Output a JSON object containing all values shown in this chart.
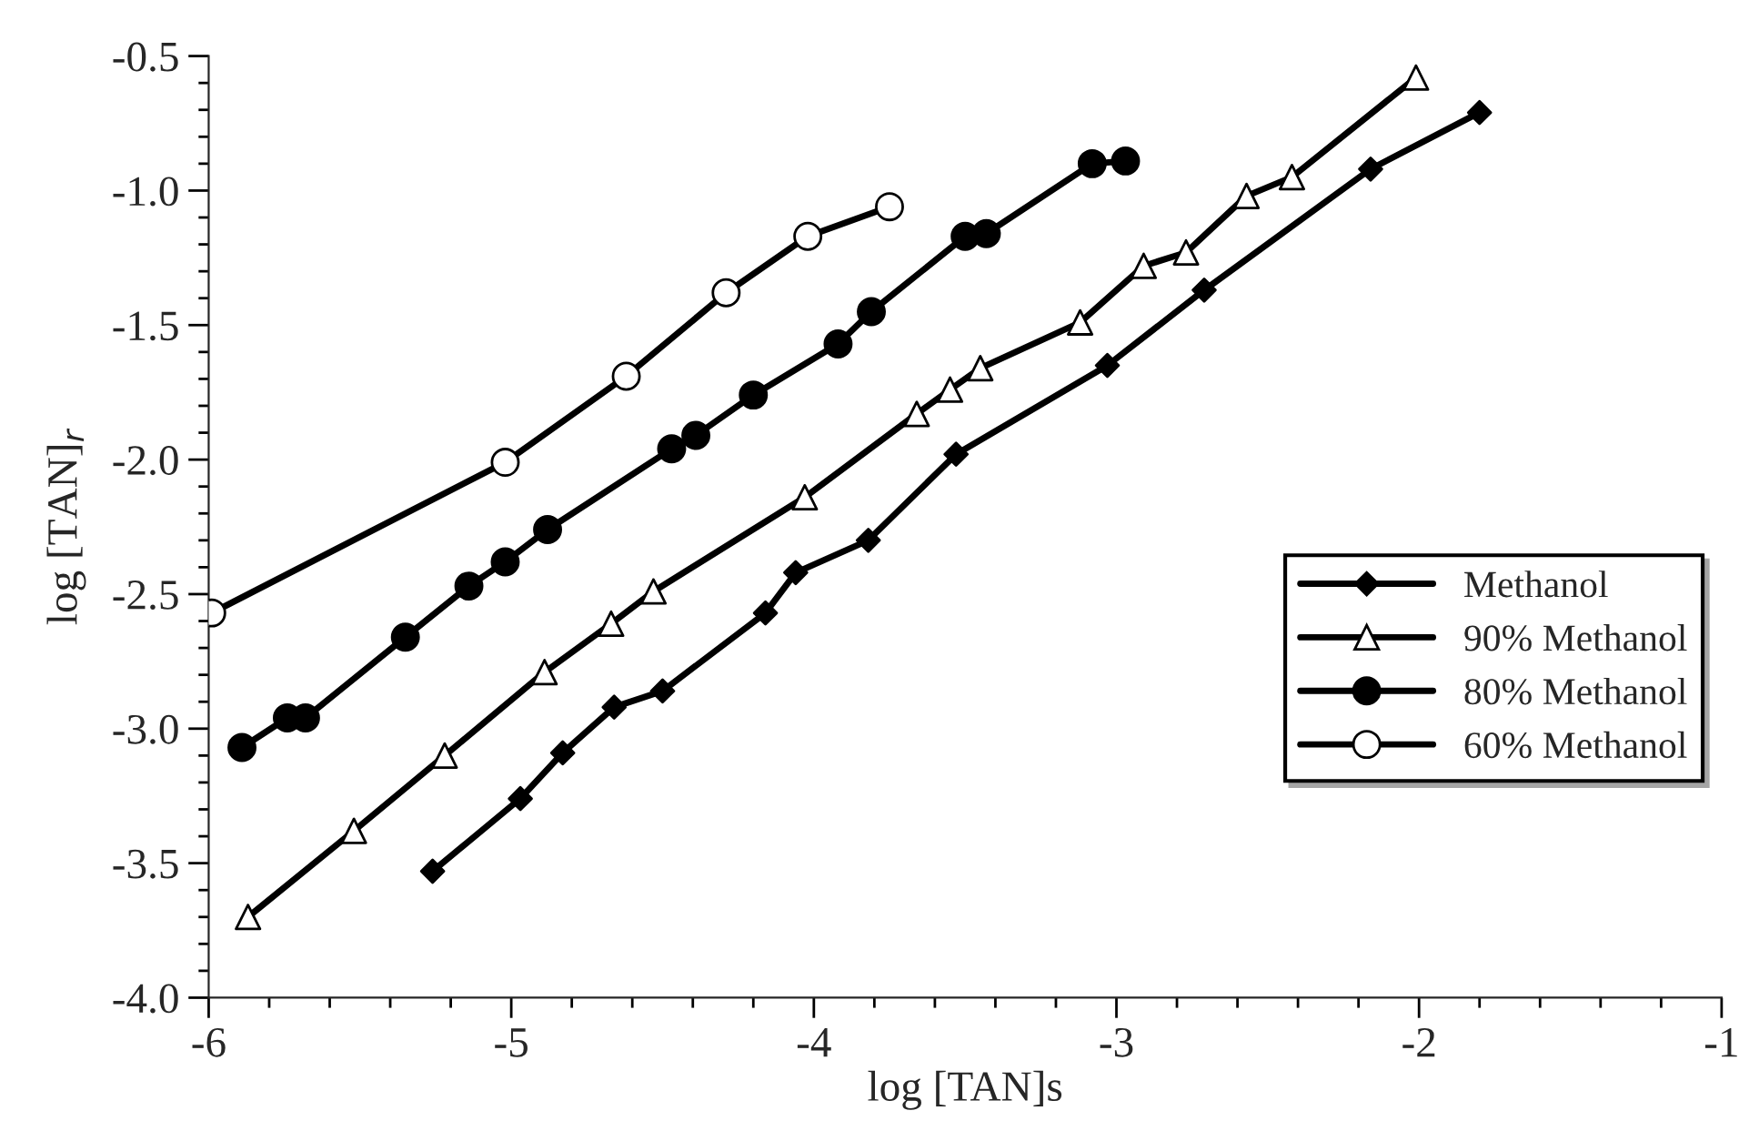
{
  "chart_data": {
    "type": "line",
    "xlabel": "log [TAN]s",
    "ylabel": "log [TAN]$_{r}$",
    "xlim": [
      -6,
      -1
    ],
    "xticks": [
      -6,
      -5,
      -4,
      -3,
      -2,
      -1
    ],
    "ylim": [
      -4.0,
      -0.5
    ],
    "yticks": [
      {
        "value": -4.0,
        "label": "-4.0"
      },
      {
        "value": -3.5,
        "label": "-3.5"
      },
      {
        "value": -3.0,
        "label": "-3.0"
      },
      {
        "value": -2.5,
        "label": "-2.5"
      },
      {
        "value": -2.0,
        "label": "-2.0"
      },
      {
        "value": -1.5,
        "label": "-1.5"
      },
      {
        "value": -1.0,
        "label": "-1.0"
      },
      {
        "value": -0.5,
        "label": "-0.5"
      }
    ],
    "grid": false,
    "legend": "right",
    "line_style": "solid",
    "series": [
      {
        "name": "Methanol",
        "color": "#000000",
        "marker": "diamond",
        "x": [
          -5.26,
          -4.97,
          -4.83,
          -4.66,
          -4.5,
          -4.16,
          -4.06,
          -3.82,
          -3.53,
          -3.03,
          -2.71,
          -2.16,
          -1.8
        ],
        "values": [
          -3.53,
          -3.26,
          -3.09,
          -2.92,
          -2.86,
          -2.57,
          -2.42,
          -2.3,
          -1.98,
          -1.65,
          -1.37,
          -0.92,
          -0.71
        ]
      },
      {
        "name": "90% Methanol",
        "color": "#ffffff",
        "marker": "triangle",
        "x": [
          -5.87,
          -5.52,
          -5.22,
          -4.89,
          -4.67,
          -4.53,
          -4.03,
          -3.66,
          -3.55,
          -3.45,
          -3.12,
          -2.91,
          -2.77,
          -2.57,
          -2.42,
          -2.01
        ],
        "values": [
          -3.7,
          -3.38,
          -3.1,
          -2.79,
          -2.61,
          -2.49,
          -2.14,
          -1.83,
          -1.74,
          -1.66,
          -1.49,
          -1.28,
          -1.23,
          -1.02,
          -0.95,
          -0.58
        ]
      },
      {
        "name": "80% Methanol",
        "color": "#000000",
        "marker": "circle",
        "x": [
          -5.89,
          -5.74,
          -5.68,
          -5.35,
          -5.14,
          -5.02,
          -4.88,
          -4.47,
          -4.39,
          -4.2,
          -3.92,
          -3.81,
          -3.5,
          -3.43,
          -3.08,
          -2.97
        ],
        "values": [
          -3.07,
          -2.96,
          -2.96,
          -2.66,
          -2.47,
          -2.38,
          -2.26,
          -1.96,
          -1.91,
          -1.76,
          -1.57,
          -1.45,
          -1.17,
          -1.16,
          -0.9,
          -0.89
        ]
      },
      {
        "name": "60% Methanol",
        "color": "#ffffff",
        "marker": "circle",
        "x": [
          -5.99,
          -5.02,
          -4.62,
          -4.29,
          -4.02,
          -3.75
        ],
        "values": [
          -2.57,
          -2.01,
          -1.69,
          -1.38,
          -1.17,
          -1.06
        ]
      }
    ]
  }
}
